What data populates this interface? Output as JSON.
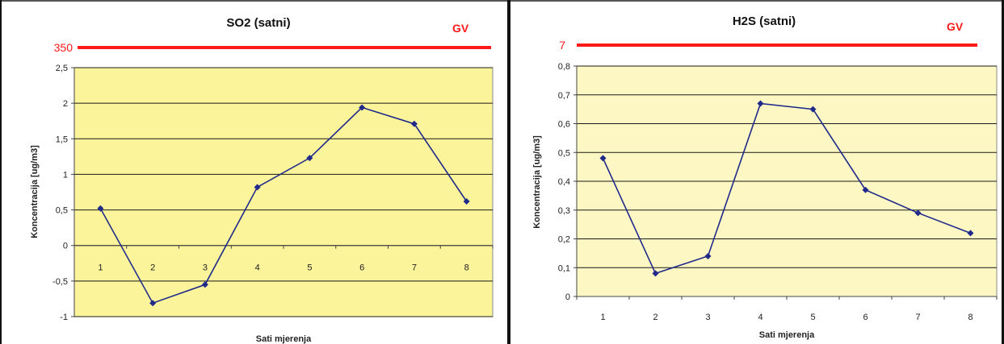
{
  "colors": {
    "limit_line": "#ff1a1a",
    "limit_text": "#ff1a1a",
    "series_line": "#1f2a8a",
    "plot_bg_left": "#fbf49a",
    "plot_bg_right": "#fdf7c3",
    "grid": "#1a1a1a"
  },
  "chart_data": [
    {
      "type": "line",
      "title": "SO2 (satni)",
      "limit_label": "GV",
      "limit_value": "350",
      "xlabel": "Sati mjerenja",
      "ylabel": "Koncentracija [ug/m3]",
      "ylim": [
        -1,
        2.5
      ],
      "y_ticks": [
        "2,5",
        "2",
        "1,5",
        "1",
        "0,5",
        "0",
        "-0,5",
        "-1"
      ],
      "y_tick_values": [
        2.5,
        2,
        1.5,
        1,
        0.5,
        0,
        -0.5,
        -1
      ],
      "categories": [
        "1",
        "2",
        "3",
        "4",
        "5",
        "6",
        "7",
        "8"
      ],
      "values": [
        0.52,
        -0.81,
        -0.55,
        0.82,
        1.23,
        1.94,
        1.71,
        0.62
      ],
      "grid": true,
      "legend": "none"
    },
    {
      "type": "line",
      "title": "H2S (satni)",
      "limit_label": "GV",
      "limit_value": "7",
      "xlabel": "Sati mjerenja",
      "ylabel": "Koncentracija [ug/m3]",
      "ylim": [
        0,
        0.8
      ],
      "y_ticks": [
        "0,8",
        "0,7",
        "0,6",
        "0,5",
        "0,4",
        "0,3",
        "0,2",
        "0,1",
        "0"
      ],
      "y_tick_values": [
        0.8,
        0.7,
        0.6,
        0.5,
        0.4,
        0.3,
        0.2,
        0.1,
        0
      ],
      "categories": [
        "1",
        "2",
        "3",
        "4",
        "5",
        "6",
        "7",
        "8"
      ],
      "values": [
        0.48,
        0.08,
        0.14,
        0.67,
        0.65,
        0.37,
        0.29,
        0.22
      ],
      "grid": true,
      "legend": "none"
    }
  ]
}
